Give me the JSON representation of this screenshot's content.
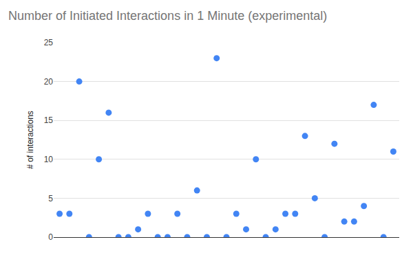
{
  "chart_data": {
    "type": "scatter",
    "title": "Number of Initiated Interactions in 1 Minute (experimental)",
    "y_label": "# of interactions",
    "categories": [
      null,
      null,
      null,
      null,
      null,
      null,
      null,
      null,
      null,
      null,
      null,
      null,
      null,
      null,
      null,
      null,
      null,
      null,
      null,
      null,
      null,
      null,
      null,
      null,
      null,
      null,
      null,
      null,
      null,
      null,
      null,
      null,
      null,
      null,
      null
    ],
    "values": [
      3,
      3,
      20,
      0,
      10,
      16,
      0,
      0,
      1,
      3,
      0,
      0,
      3,
      0,
      6,
      0,
      23,
      0,
      3,
      1,
      10,
      0,
      1,
      3,
      3,
      13,
      5,
      0,
      12,
      2,
      2,
      4,
      17,
      0,
      11
    ],
    "color": "#4285f4",
    "marker": "circle",
    "ylim": [
      0,
      25
    ],
    "yticks": [
      0,
      5,
      10,
      15,
      20,
      25
    ],
    "grid": true,
    "tick_labels": "y"
  }
}
